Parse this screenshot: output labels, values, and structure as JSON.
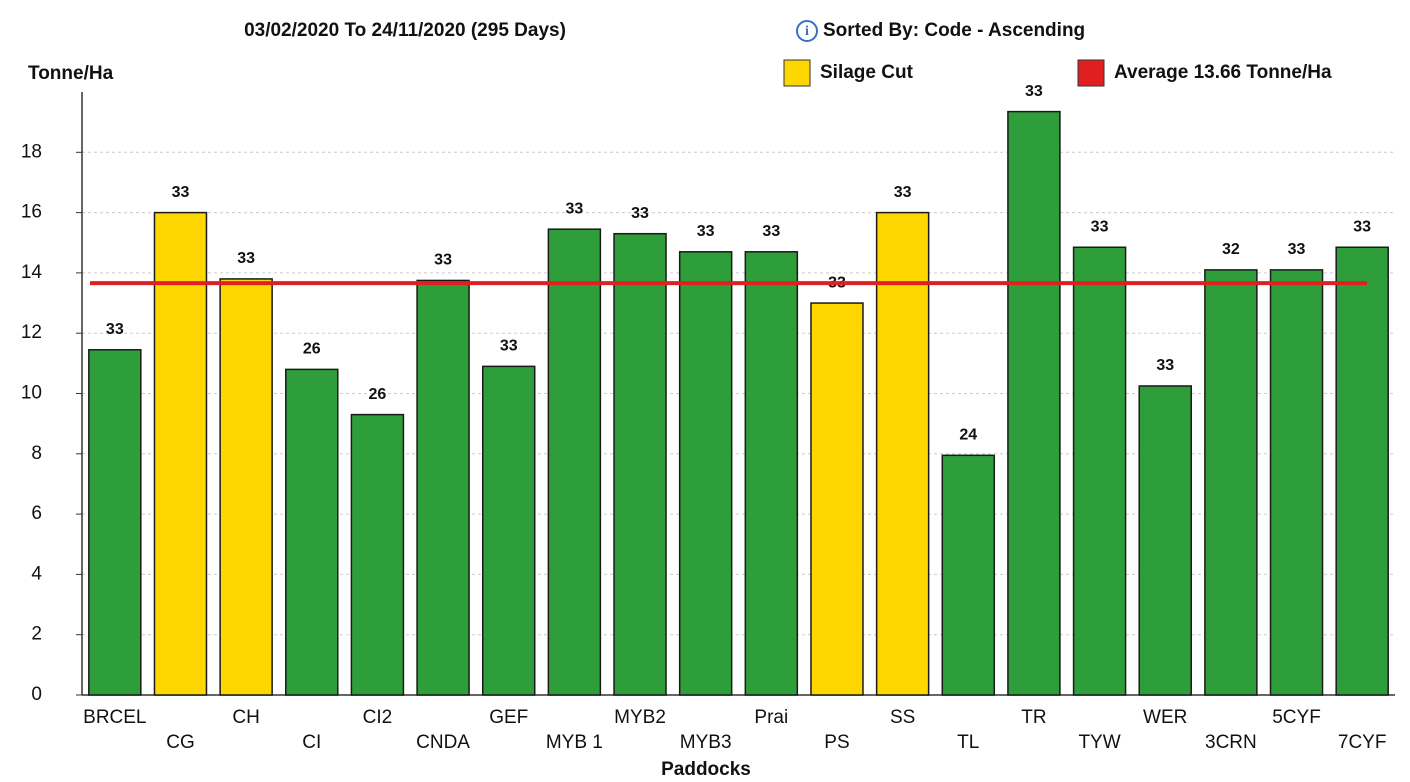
{
  "chart_data": {
    "type": "bar",
    "title": "03/02/2020 To 24/11/2020 (295 Days)",
    "subtitle": "Sorted By: Code - Ascending",
    "y_label": "Tonne/Ha",
    "x_label": "Paddocks",
    "categories": [
      "BRCEL",
      "CG",
      "CH",
      "CI",
      "CI2",
      "CNDA",
      "GEF",
      "MYB 1",
      "MYB2",
      "MYB3",
      "Prai",
      "PS",
      "SS",
      "TL",
      "TR",
      "TYW",
      "WER",
      "3CRN",
      "5CYF",
      "7CYF"
    ],
    "values": [
      11.45,
      16,
      13.8,
      10.8,
      9.3,
      13.75,
      10.9,
      15.45,
      15.3,
      14.7,
      14.7,
      13.0,
      16.0,
      7.95,
      19.35,
      14.85,
      10.25,
      14.1,
      14.1,
      14.85
    ],
    "colors": [
      "#2e9e3a",
      "#ffd700",
      "#ffd700",
      "#2e9e3a",
      "#2e9e3a",
      "#2e9e3a",
      "#2e9e3a",
      "#2e9e3a",
      "#2e9e3a",
      "#2e9e3a",
      "#2e9e3a",
      "#ffd700",
      "#ffd700",
      "#2e9e3a",
      "#2e9e3a",
      "#2e9e3a",
      "#2e9e3a",
      "#2e9e3a",
      "#2e9e3a",
      "#2e9e3a"
    ],
    "bar_annotations": [
      33,
      33,
      33,
      26,
      26,
      33,
      33,
      33,
      33,
      33,
      33,
      33,
      33,
      24,
      33,
      33,
      33,
      32,
      33,
      33
    ],
    "legend": [
      {
        "name": "Silage Cut",
        "color": "#ffd700"
      }
    ],
    "average": {
      "name": "Average 13.66 Tonne/Ha",
      "value": 13.66,
      "color": "#e02020"
    },
    "ylim": [
      0,
      20
    ],
    "yticks": [
      0,
      2,
      4,
      6,
      8,
      10,
      12,
      14,
      16,
      18
    ],
    "grid": true
  }
}
